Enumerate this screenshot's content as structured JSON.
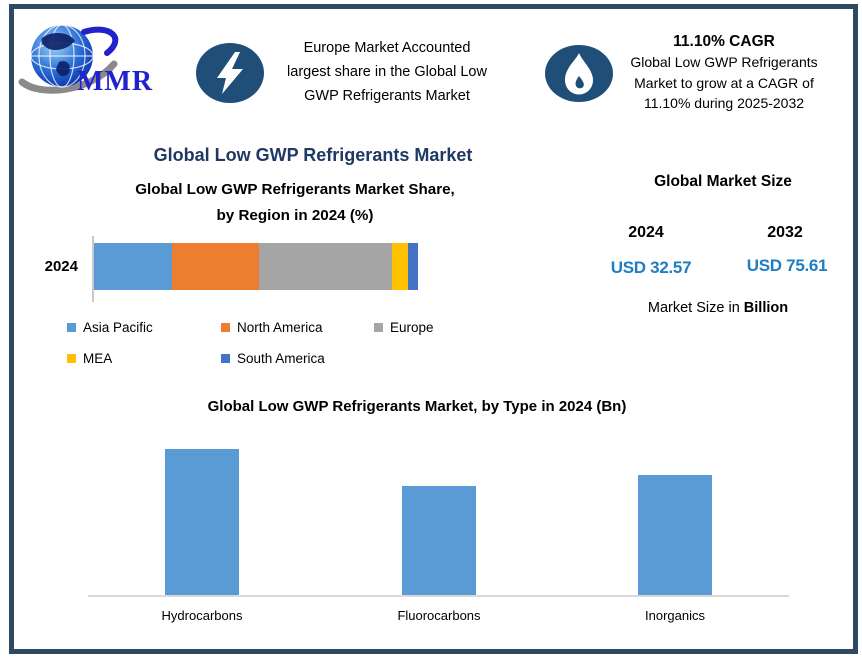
{
  "colors": {
    "frame_border": "#2E4A62",
    "icon_circle": "#1F4E79",
    "section_title": "#1F3864",
    "usd_value": "#1F7EC2",
    "axis_line": "#C9C9C9",
    "baseline": "#D9D9D9"
  },
  "logo": {
    "text": "MMR"
  },
  "highlights": {
    "europe": {
      "icon": "lightning-bolt",
      "text_lines": [
        "Europe Market Accounted",
        "largest share in the Global Low",
        "GWP Refrigerants Market"
      ]
    },
    "cagr": {
      "icon": "flame",
      "headline": "11.10% CAGR",
      "text_lines": [
        "Global Low GWP Refrigerants",
        "Market to grow at a CAGR of",
        "11.10% during 2025-2032"
      ]
    }
  },
  "region_section": {
    "title": "Global Low GWP Refrigerants Market",
    "subtitle_line1": "Global Low GWP Refrigerants Market Share,",
    "subtitle_line2": "by Region in 2024 (%)",
    "year_label": "2024",
    "legend": [
      {
        "label": "Asia Pacific"
      },
      {
        "label": "North America"
      },
      {
        "label": "Europe"
      },
      {
        "label": "MEA"
      },
      {
        "label": "South America"
      }
    ]
  },
  "market_size": {
    "title": "Global Market Size",
    "year1": "2024",
    "year2": "2032",
    "value1": "USD 32.57",
    "value2": "USD 75.61",
    "footer_prefix": "Market Size in ",
    "footer_bold": "Billion"
  },
  "type_section": {
    "title": "Global Low GWP Refrigerants Market, by Type in 2024 (Bn)"
  },
  "chart_data": [
    {
      "type": "bar",
      "variant": "stacked-horizontal",
      "title": "Global Low GWP Refrigerants Market Share, by Region in 2024 (%)",
      "categories": [
        "2024"
      ],
      "series": [
        {
          "name": "Asia Pacific",
          "value": 24,
          "color": "#5B9BD5"
        },
        {
          "name": "North America",
          "value": 27,
          "color": "#ED7D31"
        },
        {
          "name": "Europe",
          "value": 41,
          "color": "#A5A5A5"
        },
        {
          "name": "MEA",
          "value": 5,
          "color": "#FFC000"
        },
        {
          "name": "South America",
          "value": 3,
          "color": "#4472C4"
        }
      ],
      "unit": "%",
      "values_estimated_from_pixels": true,
      "legend_position": "bottom",
      "grid": false
    },
    {
      "type": "bar",
      "title": "Global Low GWP Refrigerants Market, by Type in 2024 (Bn)",
      "categories": [
        "Hydrocarbons",
        "Fluorocarbons",
        "Inorganics"
      ],
      "values": [
        12.7,
        9.5,
        10.4
      ],
      "unit": "Bn",
      "values_estimated_from_pixels": true,
      "bar_color": "#5B9BD5",
      "xlabel": "",
      "ylabel": "",
      "axis_labels_shown": false,
      "grid": false
    }
  ]
}
